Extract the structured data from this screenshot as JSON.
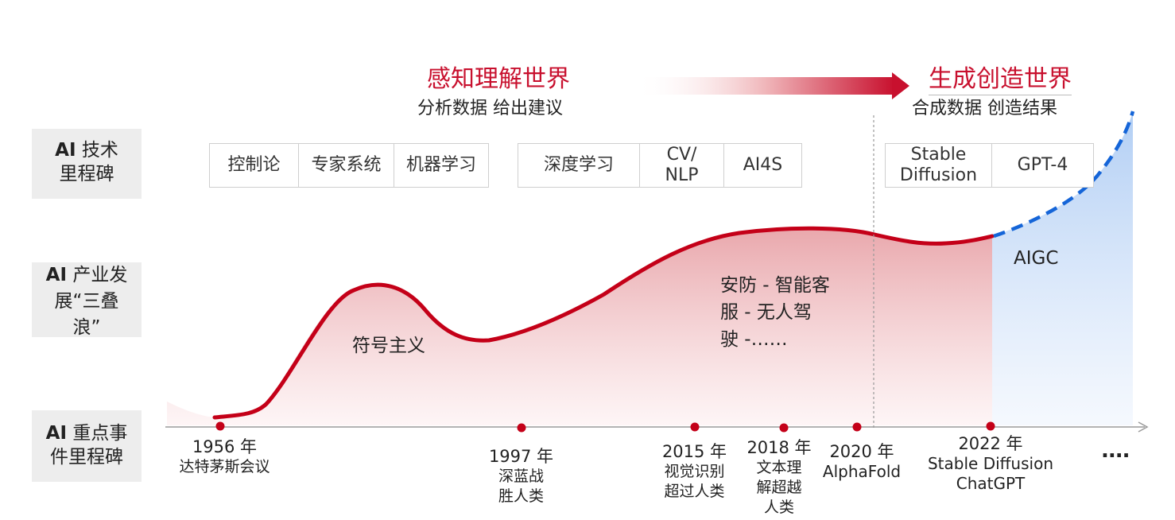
{
  "phases": {
    "perceive": {
      "title": "感知理解世界",
      "subtitle": "分析数据 给出建议"
    },
    "generate": {
      "title": "生成创造世界",
      "subtitle": "合成数据 创造结果"
    }
  },
  "row_labels": {
    "tech": {
      "bold": "AI",
      "rest": " 技术",
      "line2": "里程碑"
    },
    "industry": {
      "bold": "AI",
      "rest": " 产业发",
      "line2": "展“三叠",
      "line3": "浪”"
    },
    "events": {
      "bold": "AI",
      "rest": " 重点事",
      "line2": "件里程碑"
    }
  },
  "tech_milestones": [
    {
      "label": "控制论"
    },
    {
      "label": "专家系统"
    },
    {
      "label": "机器学习"
    },
    {
      "label": "深度学习"
    },
    {
      "label": "CV/",
      "label2": "NLP"
    },
    {
      "label": "AI4S"
    },
    {
      "label": "Stable",
      "label2": "Diffusion"
    },
    {
      "label": "GPT-4"
    }
  ],
  "waves": {
    "symbolism": "符号主义",
    "applications": [
      "安防 - 智能客",
      "服 - 无人驾",
      "驶 -……"
    ],
    "aigc": "AIGC"
  },
  "events": [
    {
      "year": "1956 年",
      "lines": [
        "达特茅斯会议"
      ]
    },
    {
      "year": "1997 年",
      "lines": [
        "深蓝战",
        "胜人类"
      ]
    },
    {
      "year": "2015 年",
      "lines": [
        "视觉识别",
        "超过人类"
      ]
    },
    {
      "year": "2018 年",
      "lines": [
        "文本理",
        "解超越",
        "人类"
      ]
    },
    {
      "year": "2020 年",
      "lines": [
        "AlphaFold"
      ]
    },
    {
      "year": "2022 年",
      "lines": [
        "Stable Diffusion",
        "ChatGPT"
      ]
    }
  ],
  "more": "...."
}
